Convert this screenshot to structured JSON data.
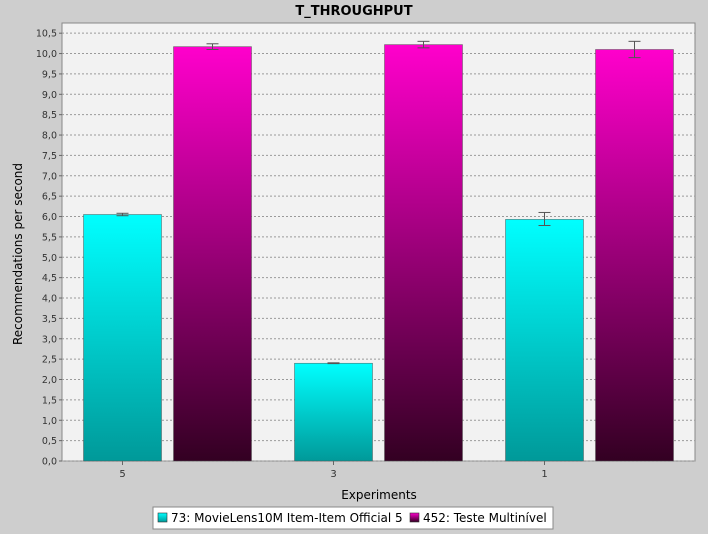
{
  "chart_data": {
    "type": "bar",
    "title": "T_THROUGHPUT",
    "xlabel": "Experiments",
    "ylabel": "Recommendations per second",
    "categories": [
      "5",
      "3",
      "1"
    ],
    "ylim": [
      0,
      10.75
    ],
    "yticks": [
      "0,0",
      "0,5",
      "1,0",
      "1,5",
      "2,0",
      "2,5",
      "3,0",
      "3,5",
      "4,0",
      "4,5",
      "5,0",
      "5,5",
      "6,0",
      "6,5",
      "7,0",
      "7,5",
      "8,0",
      "8,5",
      "9,0",
      "9,5",
      "10,0",
      "10,5"
    ],
    "grid": true,
    "legend_position": "bottom",
    "series": [
      {
        "name": "73: MovieLens10M Item-Item Official 5",
        "values": [
          6.05,
          2.4,
          5.93
        ],
        "error_low": [
          6.02,
          2.39,
          5.78
        ],
        "error_high": [
          6.08,
          2.41,
          6.1
        ],
        "color_top": "#00ffff",
        "color_bottom": "#009999"
      },
      {
        "name": "452: Teste Multinível",
        "values": [
          10.17,
          10.22,
          10.1
        ],
        "error_low": [
          10.1,
          10.14,
          9.9
        ],
        "error_high": [
          10.24,
          10.3,
          10.3
        ],
        "color_top": "#ff00cc",
        "color_bottom": "#330022"
      }
    ]
  }
}
